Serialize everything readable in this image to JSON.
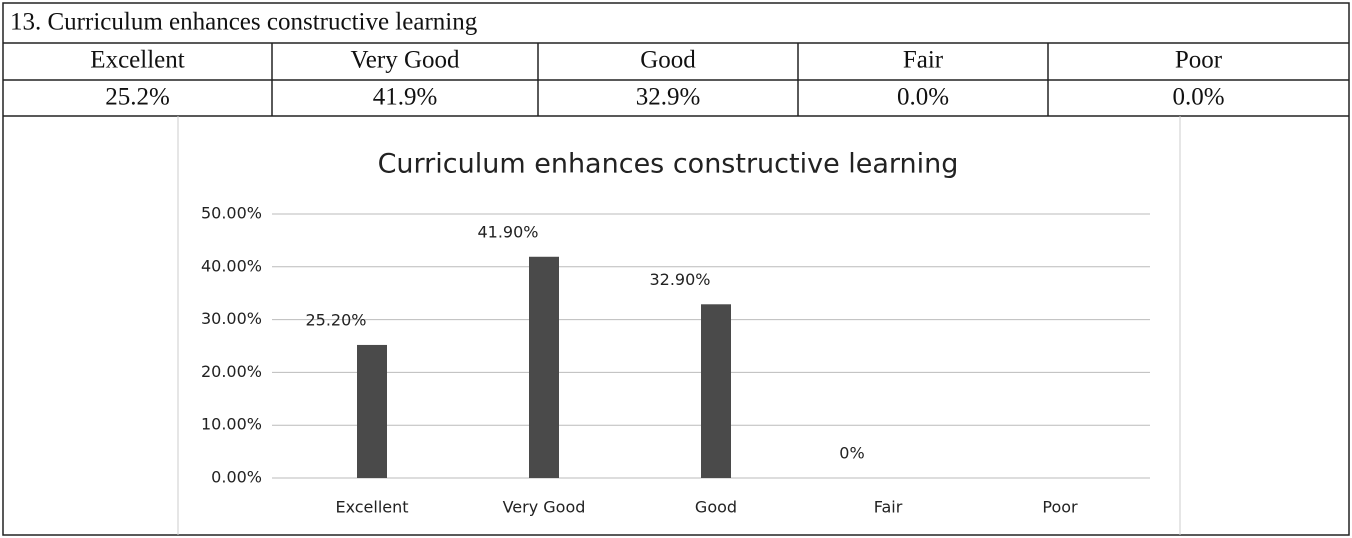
{
  "table": {
    "title": "13. Curriculum enhances constructive learning",
    "header": [
      "Excellent",
      "Very Good",
      "Good",
      "Fair",
      "Poor"
    ],
    "values": [
      "25.2%",
      "41.9%",
      "32.9%",
      "0.0%",
      "0.0%"
    ]
  },
  "chart_data": {
    "type": "bar",
    "title": "Curriculum enhances constructive learning",
    "categories": [
      "Excellent",
      "Very Good",
      "Good",
      "Fair",
      "Poor"
    ],
    "values": [
      25.2,
      41.9,
      32.9,
      0,
      0
    ],
    "value_labels": [
      "25.20%",
      "41.90%",
      "32.90%",
      "0%",
      null
    ],
    "color": "#4a4a4a",
    "ylim": [
      0,
      50
    ],
    "yticks": [
      {
        "value": 0,
        "label": "0.00%"
      },
      {
        "value": 10,
        "label": "10.00%"
      },
      {
        "value": 20,
        "label": "20.00%"
      },
      {
        "value": 30,
        "label": "30.00%"
      },
      {
        "value": 40,
        "label": "40.00%"
      },
      {
        "value": 50,
        "label": "50.00%"
      }
    ],
    "grid": true
  }
}
